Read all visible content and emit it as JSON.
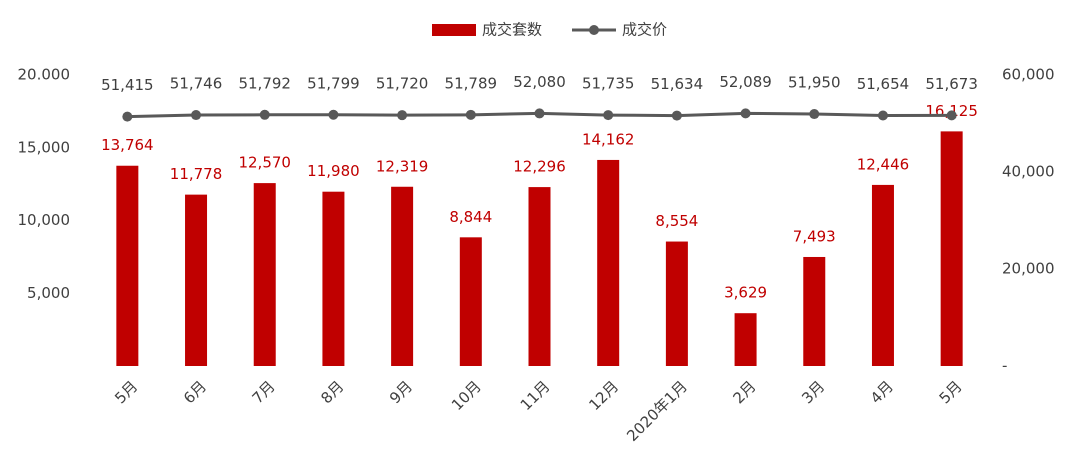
{
  "chart_data": {
    "type": "bar",
    "categories": [
      "5月",
      "6月",
      "7月",
      "8月",
      "9月",
      "10月",
      "11月",
      "12月",
      "2020年1月",
      "2月",
      "3月",
      "4月",
      "5月"
    ],
    "series": [
      {
        "name": "成交套数",
        "type": "bar",
        "color": "#c00000",
        "values": [
          13764,
          11778,
          12570,
          11980,
          12319,
          8844,
          12296,
          14162,
          8554,
          3629,
          7493,
          12446,
          16125
        ],
        "value_labels": [
          "13,764",
          "11,778",
          "12,570",
          "11,980",
          "12,319",
          "8,844",
          "12,296",
          "14,162",
          "8,554",
          "3,629",
          "7,493",
          "12,446",
          "16,125"
        ]
      },
      {
        "name": "成交价",
        "type": "line",
        "color": "#595959",
        "axis": "y2",
        "values": [
          51415,
          51746,
          51792,
          51799,
          51720,
          51789,
          52080,
          51735,
          51634,
          52089,
          51950,
          51654,
          51673
        ],
        "value_labels": [
          "51,415",
          "51,746",
          "51,792",
          "51,799",
          "51,720",
          "51,789",
          "52,080",
          "51,735",
          "51,634",
          "52,089",
          "51,950",
          "51,654",
          "51,673"
        ]
      }
    ],
    "ylim": [
      0,
      20000
    ],
    "yticks": [
      {
        "value": 5000,
        "label": "5,000"
      },
      {
        "value": 10000,
        "label": "10,000"
      },
      {
        "value": 15000,
        "label": "15,000"
      },
      {
        "value": 20000,
        "label": "20.000"
      }
    ],
    "y2lim": [
      0,
      60000
    ],
    "y2ticks": [
      {
        "value": 0,
        "label": "-"
      },
      {
        "value": 20000,
        "label": "20,000"
      },
      {
        "value": 40000,
        "label": "40,000"
      },
      {
        "value": 60000,
        "label": "60,000"
      }
    ],
    "grid": false
  }
}
